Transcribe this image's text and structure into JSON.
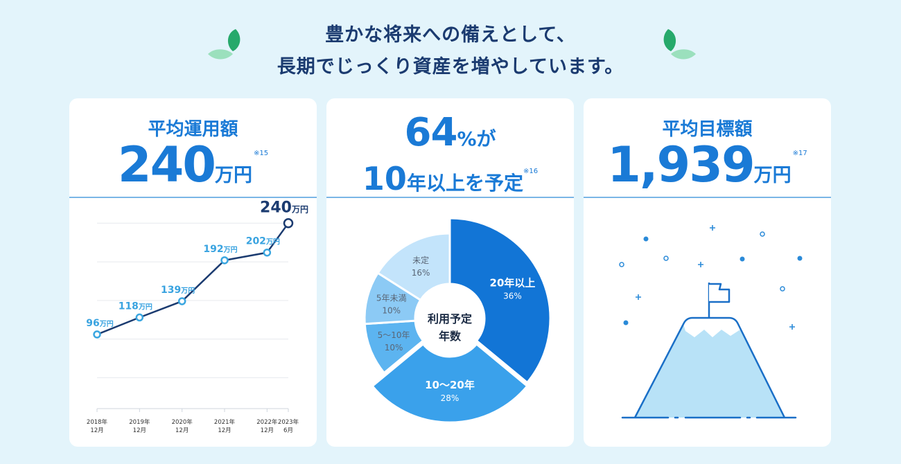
{
  "headline": {
    "line1": "豊かな将来への備えとして、",
    "line2": "長期でじっくり資産を増やしています。"
  },
  "colors": {
    "background": "#e3f4fb",
    "navy": "#1b3b70",
    "blue": "#1a7ad6",
    "light_blue": "#39a3e0",
    "leaf_dark": "#26a96b",
    "leaf_light": "#9be0bd"
  },
  "card1": {
    "label": "平均運用額",
    "value": "240",
    "unit": "万円",
    "note": "※15"
  },
  "card2": {
    "pct_value": "64",
    "pct_suffix": "%が",
    "line2_value": "10",
    "line2_text": "年以上を予定",
    "note": "※16",
    "donut_center_line1": "利用予定",
    "donut_center_line2": "年数"
  },
  "card3": {
    "label": "平均目標額",
    "value": "1,939",
    "unit": "万円",
    "note": "※17",
    "illustration_icon": "mountain-flag-icon"
  },
  "chart_data": [
    {
      "type": "line",
      "title": "平均運用額",
      "unit": "万円",
      "x": [
        "2018年12月",
        "2019年12月",
        "2020年12月",
        "2021年12月",
        "2022年12月",
        "2023年6月"
      ],
      "tick_labels": [
        {
          "year": "2018年",
          "month": "12月"
        },
        {
          "year": "2019年",
          "month": "12月"
        },
        {
          "year": "2020年",
          "month": "12月"
        },
        {
          "year": "2021年",
          "month": "12月"
        },
        {
          "year": "2022年",
          "month": "12月"
        },
        {
          "year": "2023年",
          "month": "6月"
        }
      ],
      "x_months": [
        0,
        12,
        24,
        36,
        48,
        54
      ],
      "values": [
        96,
        118,
        139,
        192,
        202,
        240
      ],
      "ylim": [
        0,
        260
      ],
      "gridlines": [
        40,
        90,
        140,
        190,
        240
      ]
    },
    {
      "type": "pie",
      "title": "利用予定年数",
      "slices": [
        {
          "label": "20年以上",
          "pct_text": "36%",
          "value": 36
        },
        {
          "label": "10～20年",
          "pct_text": "28%",
          "value": 28
        },
        {
          "label": "5～10年",
          "pct_text": "10%",
          "value": 10
        },
        {
          "label": "5年未満",
          "pct_text": "10%",
          "value": 10
        },
        {
          "label": "未定",
          "pct_text": "16%",
          "value": 16
        }
      ]
    }
  ]
}
